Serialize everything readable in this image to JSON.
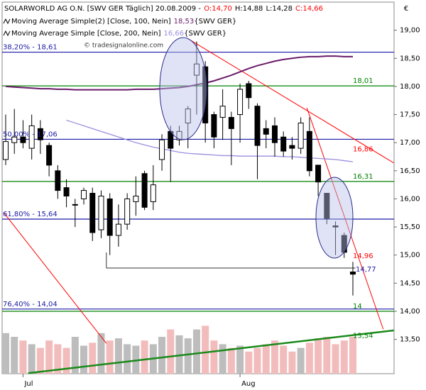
{
  "chart_data": {
    "type": "candlestick",
    "title": "SOLARWORLD AG O.N. [SWV GER  Täglich] 20.08.2009 -",
    "ohlc_labels": [
      {
        "label": "O:14,70",
        "color": "#ff0000"
      },
      {
        "label": "H:14,88",
        "color": "#000000"
      },
      {
        "label": "L:14,28",
        "color": "#000000"
      },
      {
        "label": "C:14,66",
        "color": "#ff0000"
      }
    ],
    "currency": "€",
    "watermark": "© tradesignalonline.com",
    "categories": [
      null,
      null,
      "Jul",
      null,
      null,
      null,
      null,
      null,
      null,
      null,
      null,
      null,
      null,
      null,
      null,
      null,
      null,
      null,
      null,
      null,
      null,
      null,
      null,
      null,
      null,
      null,
      null,
      "Aug",
      null,
      null,
      null,
      null,
      null,
      null,
      null,
      null,
      null,
      null,
      null,
      null,
      null
    ],
    "open": [
      16.7,
      17.0,
      17.1,
      16.9,
      17.25,
      16.95,
      16.5,
      16.2,
      15.9,
      16.0,
      16.1,
      15.45,
      16.0,
      15.35,
      15.55,
      15.95,
      16.45,
      15.95,
      16.7,
      17.2,
      17.05,
      17.35,
      18.2,
      18.35,
      17.5,
      17.45,
      17.45,
      17.5,
      18.05,
      17.65,
      17.25,
      17.3,
      17.1,
      16.95,
      16.9,
      17.2,
      16.6,
      16.1,
      15.52,
      15.35,
      14.7
    ],
    "high": [
      17.5,
      17.6,
      17.4,
      17.5,
      17.4,
      17.0,
      16.6,
      16.35,
      16.0,
      16.2,
      16.2,
      16.15,
      16.1,
      15.9,
      16.1,
      16.4,
      16.5,
      16.6,
      17.15,
      17.3,
      17.3,
      17.65,
      18.8,
      18.45,
      17.55,
      17.95,
      17.55,
      18.05,
      18.1,
      17.7,
      17.4,
      17.45,
      17.2,
      17.1,
      17.45,
      17.45,
      16.6,
      16.1,
      15.6,
      15.4,
      14.88
    ],
    "low": [
      16.6,
      16.8,
      16.9,
      16.7,
      16.8,
      16.4,
      16.0,
      15.85,
      15.5,
      15.9,
      15.25,
      15.3,
      15.0,
      15.15,
      15.45,
      15.7,
      15.8,
      15.8,
      16.5,
      16.3,
      16.95,
      16.9,
      17.5,
      17.0,
      16.9,
      17.05,
      16.6,
      17.0,
      17.6,
      16.35,
      16.9,
      16.75,
      16.75,
      16.7,
      16.8,
      16.4,
      16.05,
      15.55,
      15.0,
      14.95,
      14.28
    ],
    "close": [
      17.02,
      17.1,
      17.0,
      17.3,
      17.05,
      16.6,
      16.15,
      16.05,
      15.9,
      16.15,
      15.4,
      16.05,
      15.35,
      15.55,
      16.0,
      16.05,
      15.85,
      16.25,
      17.05,
      16.9,
      17.2,
      17.6,
      18.4,
      17.35,
      17.1,
      17.65,
      17.25,
      17.95,
      17.8,
      16.95,
      17.15,
      17.0,
      16.85,
      16.9,
      17.35,
      16.5,
      16.3,
      15.65,
      15.5,
      15.05,
      14.66
    ],
    "volume": [
      55,
      50,
      45,
      40,
      35,
      45,
      40,
      35,
      50,
      38,
      42,
      55,
      45,
      48,
      40,
      38,
      45,
      40,
      50,
      60,
      52,
      48,
      60,
      65,
      45,
      40,
      35,
      38,
      30,
      35,
      40,
      45,
      38,
      30,
      35,
      42,
      48,
      50,
      40,
      45,
      50
    ],
    "volume_lim": [
      0,
      100
    ],
    "volume_colors": [
      "#bdbdbd",
      "#f2bcbc"
    ],
    "series": [
      {
        "name": "Moving Average Simple(2) [Close, 100, Nein]",
        "last_label": "18,53",
        "suffix": "{SWV GER}",
        "color": "#6a1b6a",
        "values": [
          18.0,
          17.99,
          17.98,
          17.97,
          17.96,
          17.96,
          17.95,
          17.95,
          17.94,
          17.94,
          17.94,
          17.94,
          17.94,
          17.94,
          17.94,
          17.95,
          17.95,
          17.95,
          17.96,
          17.97,
          17.98,
          18.0,
          18.03,
          18.06,
          18.1,
          18.15,
          18.2,
          18.26,
          18.32,
          18.37,
          18.41,
          18.45,
          18.48,
          18.5,
          18.52,
          18.53,
          18.53,
          18.54,
          18.54,
          18.53,
          18.53
        ]
      },
      {
        "name": "Moving Average Simple [Close, 200, Nein]",
        "last_label": "16,66",
        "suffix": "{SWV GER}",
        "color": "#9a8ee0",
        "values": [
          null,
          null,
          null,
          null,
          null,
          null,
          null,
          17.4,
          17.35,
          17.3,
          17.25,
          17.2,
          17.15,
          17.1,
          17.05,
          17.0,
          16.96,
          16.92,
          16.89,
          16.86,
          16.83,
          16.81,
          16.8,
          16.79,
          16.78,
          16.77,
          16.77,
          16.76,
          16.76,
          16.76,
          16.76,
          16.76,
          16.75,
          16.75,
          16.74,
          16.73,
          16.72,
          16.71,
          16.7,
          16.68,
          16.66
        ]
      }
    ],
    "levels": [
      {
        "label": "38,20% - 18,61",
        "value": 18.61,
        "color": "#1a1aa6",
        "side": "left"
      },
      {
        "label": "50,00% - 17,06",
        "value": 17.06,
        "color": "#1a1aa6",
        "side": "left"
      },
      {
        "label": "61,80% - 15,64",
        "value": 15.64,
        "color": "#1a1aa6",
        "side": "left"
      },
      {
        "label": "76,40% - 14,04",
        "value": 14.04,
        "color": "#1a1aa6",
        "side": "left"
      },
      {
        "label": "18,01",
        "value": 18.01,
        "color": "#008000",
        "side": "right"
      },
      {
        "label": "16,31",
        "value": 16.31,
        "color": "#008000",
        "side": "right"
      },
      {
        "label": "14",
        "value": 14,
        "color": "#008000",
        "side": "right"
      }
    ],
    "trendlines": [
      {
        "x": [
          21.0,
          44.7
        ],
        "y": [
          18.85,
          16.64
        ],
        "color": "#ff0000"
      },
      {
        "x": [
          34.7,
          43.5
        ],
        "y": [
          17.62,
          13.68
        ],
        "color": "#ff0000"
      },
      {
        "x": [
          -0.25,
          11.6
        ],
        "y": [
          15.76,
          13.43
        ],
        "color": "#ff0000"
      },
      {
        "x": [
          2.6,
          44.7
        ],
        "y": [
          12.9,
          13.66
        ],
        "color": "#1a8a1a"
      }
    ],
    "support": {
      "value": 14.77,
      "x": [
        11.6,
        40.3
      ],
      "label": "14,77",
      "color": "#1a1aa6"
    },
    "annotations": [
      {
        "label": "16,86",
        "value": 16.86,
        "color": "#ff0000"
      },
      {
        "label": "14,96",
        "value": 14.96,
        "color": "#ff0000"
      },
      {
        "label": "13,54",
        "value": 13.54,
        "color": "#008000"
      }
    ],
    "ylim": [
      12.89,
      19.5
    ],
    "yticks": [
      {
        "value": 13.5,
        "label": "13,50"
      },
      {
        "value": 14,
        "label": "14,00"
      },
      {
        "value": 14.5,
        "label": "14,50"
      },
      {
        "value": 15,
        "label": "15,00"
      },
      {
        "value": 15.5,
        "label": "15,50"
      },
      {
        "value": 16,
        "label": "16,00"
      },
      {
        "value": 16.5,
        "label": "16,50"
      },
      {
        "value": 17,
        "label": "17,00"
      },
      {
        "value": 17.5,
        "label": "17,50"
      },
      {
        "value": 18,
        "label": "18,00"
      },
      {
        "value": 18.5,
        "label": "18,50"
      },
      {
        "value": 19,
        "label": "19,00"
      }
    ]
  }
}
